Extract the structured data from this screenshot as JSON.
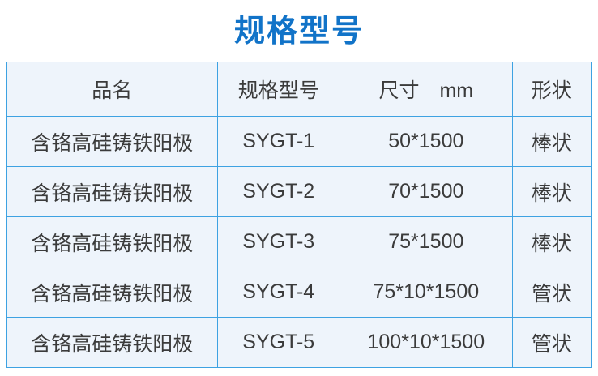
{
  "page": {
    "title": "规格型号"
  },
  "colors": {
    "title_color": "#1173c8",
    "border_color": "#3da2e2",
    "cell_bg": "#eef4fb",
    "text_color": "#3b3b3b",
    "page_bg": "#ffffff"
  },
  "table": {
    "headers": [
      "品名",
      "规格型号",
      "尺寸　mm",
      "形状"
    ],
    "rows": [
      [
        "含铬高硅铸铁阳极",
        "SYGT-1",
        "50*1500",
        "棒状"
      ],
      [
        "含铬高硅铸铁阳极",
        "SYGT-2",
        "70*1500",
        "棒状"
      ],
      [
        "含铬高硅铸铁阳极",
        "SYGT-3",
        "75*1500",
        "棒状"
      ],
      [
        "含铬高硅铸铁阳极",
        "SYGT-4",
        "75*10*1500",
        "管状"
      ],
      [
        "含铬高硅铸铁阳极",
        "SYGT-5",
        "100*10*1500",
        "管状"
      ]
    ]
  }
}
